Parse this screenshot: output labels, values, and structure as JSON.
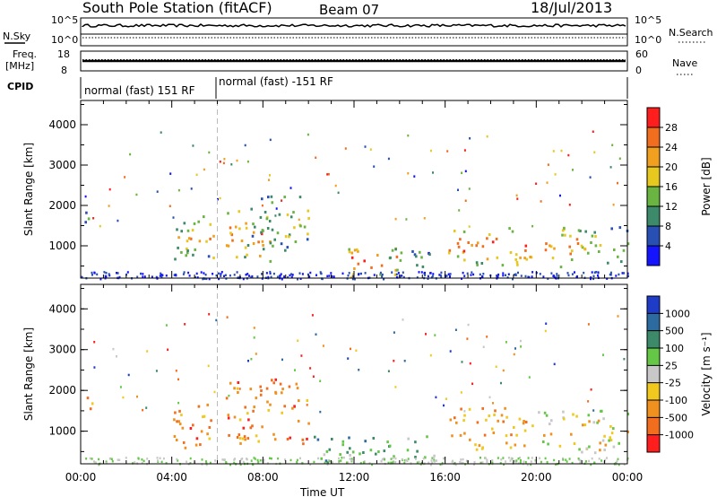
{
  "header": {
    "station": "South Pole Station (fitACF)",
    "beam": "Beam 07",
    "date": "18/Jul/2013"
  },
  "top_panels": {
    "nsky_label": "N.Sky",
    "nsearch_label": "N.Search",
    "noise_top_tick": "10^5",
    "noise_bottom_tick": "10^0",
    "freq_label_line1": "Freq.",
    "freq_label_line2": "[MHz]",
    "freq_ticks": [
      "18",
      "8"
    ],
    "nave_label": "Nave",
    "nave_ticks": [
      "60",
      "0"
    ],
    "cpid_label": "CPID",
    "cpid_segments": [
      "normal (fast) 151 RF",
      "normal (fast) -151 RF"
    ]
  },
  "chart_data": [
    {
      "type": "heatmap",
      "name": "power",
      "ylabel": "Slant Range [km]",
      "xlabel": "",
      "x_ticks": [
        "00:00",
        "04:00",
        "08:00",
        "12:00",
        "16:00",
        "20:00",
        "00:00"
      ],
      "y_ticks": [
        "1000",
        "2000",
        "3000",
        "4000"
      ],
      "ylim": [
        200,
        4600
      ],
      "colorbar_label": "Power [dB]",
      "colorbar_ticks": [
        "4",
        "8",
        "12",
        "16",
        "20",
        "24",
        "28"
      ],
      "colors": [
        "#1414ff",
        "#2850b4",
        "#3c8a6a",
        "#6ab441",
        "#e6c81e",
        "#f0a01e",
        "#f06e1e",
        "#ff1e1e"
      ],
      "clusters": [
        {
          "t0": 0.1,
          "t1": 0.5,
          "r0": 1250,
          "r1": 1900,
          "level": 0.3
        },
        {
          "t0": 3.9,
          "t1": 4.9,
          "r0": 700,
          "r1": 1700,
          "level": 0.55
        },
        {
          "t0": 4.6,
          "t1": 6.0,
          "r0": 700,
          "r1": 1800,
          "level": 0.6
        },
        {
          "t0": 6.3,
          "t1": 8.3,
          "r0": 600,
          "r1": 1900,
          "level": 0.7
        },
        {
          "t0": 7.3,
          "t1": 10.0,
          "r0": 900,
          "r1": 2300,
          "level": 0.45
        },
        {
          "t0": 11.3,
          "t1": 14.0,
          "r0": 250,
          "r1": 1000,
          "level": 0.8
        },
        {
          "t0": 13.3,
          "t1": 15.4,
          "r0": 300,
          "r1": 900,
          "level": 0.4
        },
        {
          "t0": 16.0,
          "t1": 19.8,
          "r0": 550,
          "r1": 1500,
          "level": 0.75
        },
        {
          "t0": 20.3,
          "t1": 22.2,
          "r0": 500,
          "r1": 1500,
          "level": 0.7
        },
        {
          "t0": 21.8,
          "t1": 24.0,
          "r0": 600,
          "r1": 1500,
          "level": 0.5
        }
      ]
    },
    {
      "type": "heatmap",
      "name": "velocity",
      "ylabel": "Slant Range [km]",
      "xlabel": "Time UT",
      "x_ticks": [
        "00:00",
        "04:00",
        "08:00",
        "12:00",
        "16:00",
        "20:00",
        "00:00"
      ],
      "y_ticks": [
        "1000",
        "2000",
        "3000",
        "4000"
      ],
      "ylim": [
        200,
        4600
      ],
      "colorbar_label": "Velocity [m s⁻¹]",
      "colorbar_ticks": [
        "1000",
        "500",
        "100",
        "25",
        "-25",
        "-100",
        "-500",
        "-1000"
      ],
      "colors": [
        "#1e3cc8",
        "#2d6aa0",
        "#3c8a6a",
        "#64c846",
        "#c8c8c8",
        "#f0c81e",
        "#f0901e",
        "#f06e1e",
        "#ff1e1e"
      ],
      "clusters": [
        {
          "t0": 0.1,
          "t1": 0.5,
          "r0": 1250,
          "r1": 1900,
          "level": 0.8
        },
        {
          "t0": 3.9,
          "t1": 6.0,
          "r0": 600,
          "r1": 1700,
          "level": 0.8
        },
        {
          "t0": 6.3,
          "t1": 10.0,
          "r0": 700,
          "r1": 2300,
          "level": 0.8
        },
        {
          "t0": 10.2,
          "t1": 15.5,
          "r0": 250,
          "r1": 900,
          "level": 0.3
        },
        {
          "t0": 16.0,
          "t1": 19.8,
          "r0": 550,
          "r1": 1600,
          "level": 0.75
        },
        {
          "t0": 20.0,
          "t1": 24.0,
          "r0": 500,
          "r1": 1600,
          "level": 0.55
        }
      ]
    }
  ]
}
